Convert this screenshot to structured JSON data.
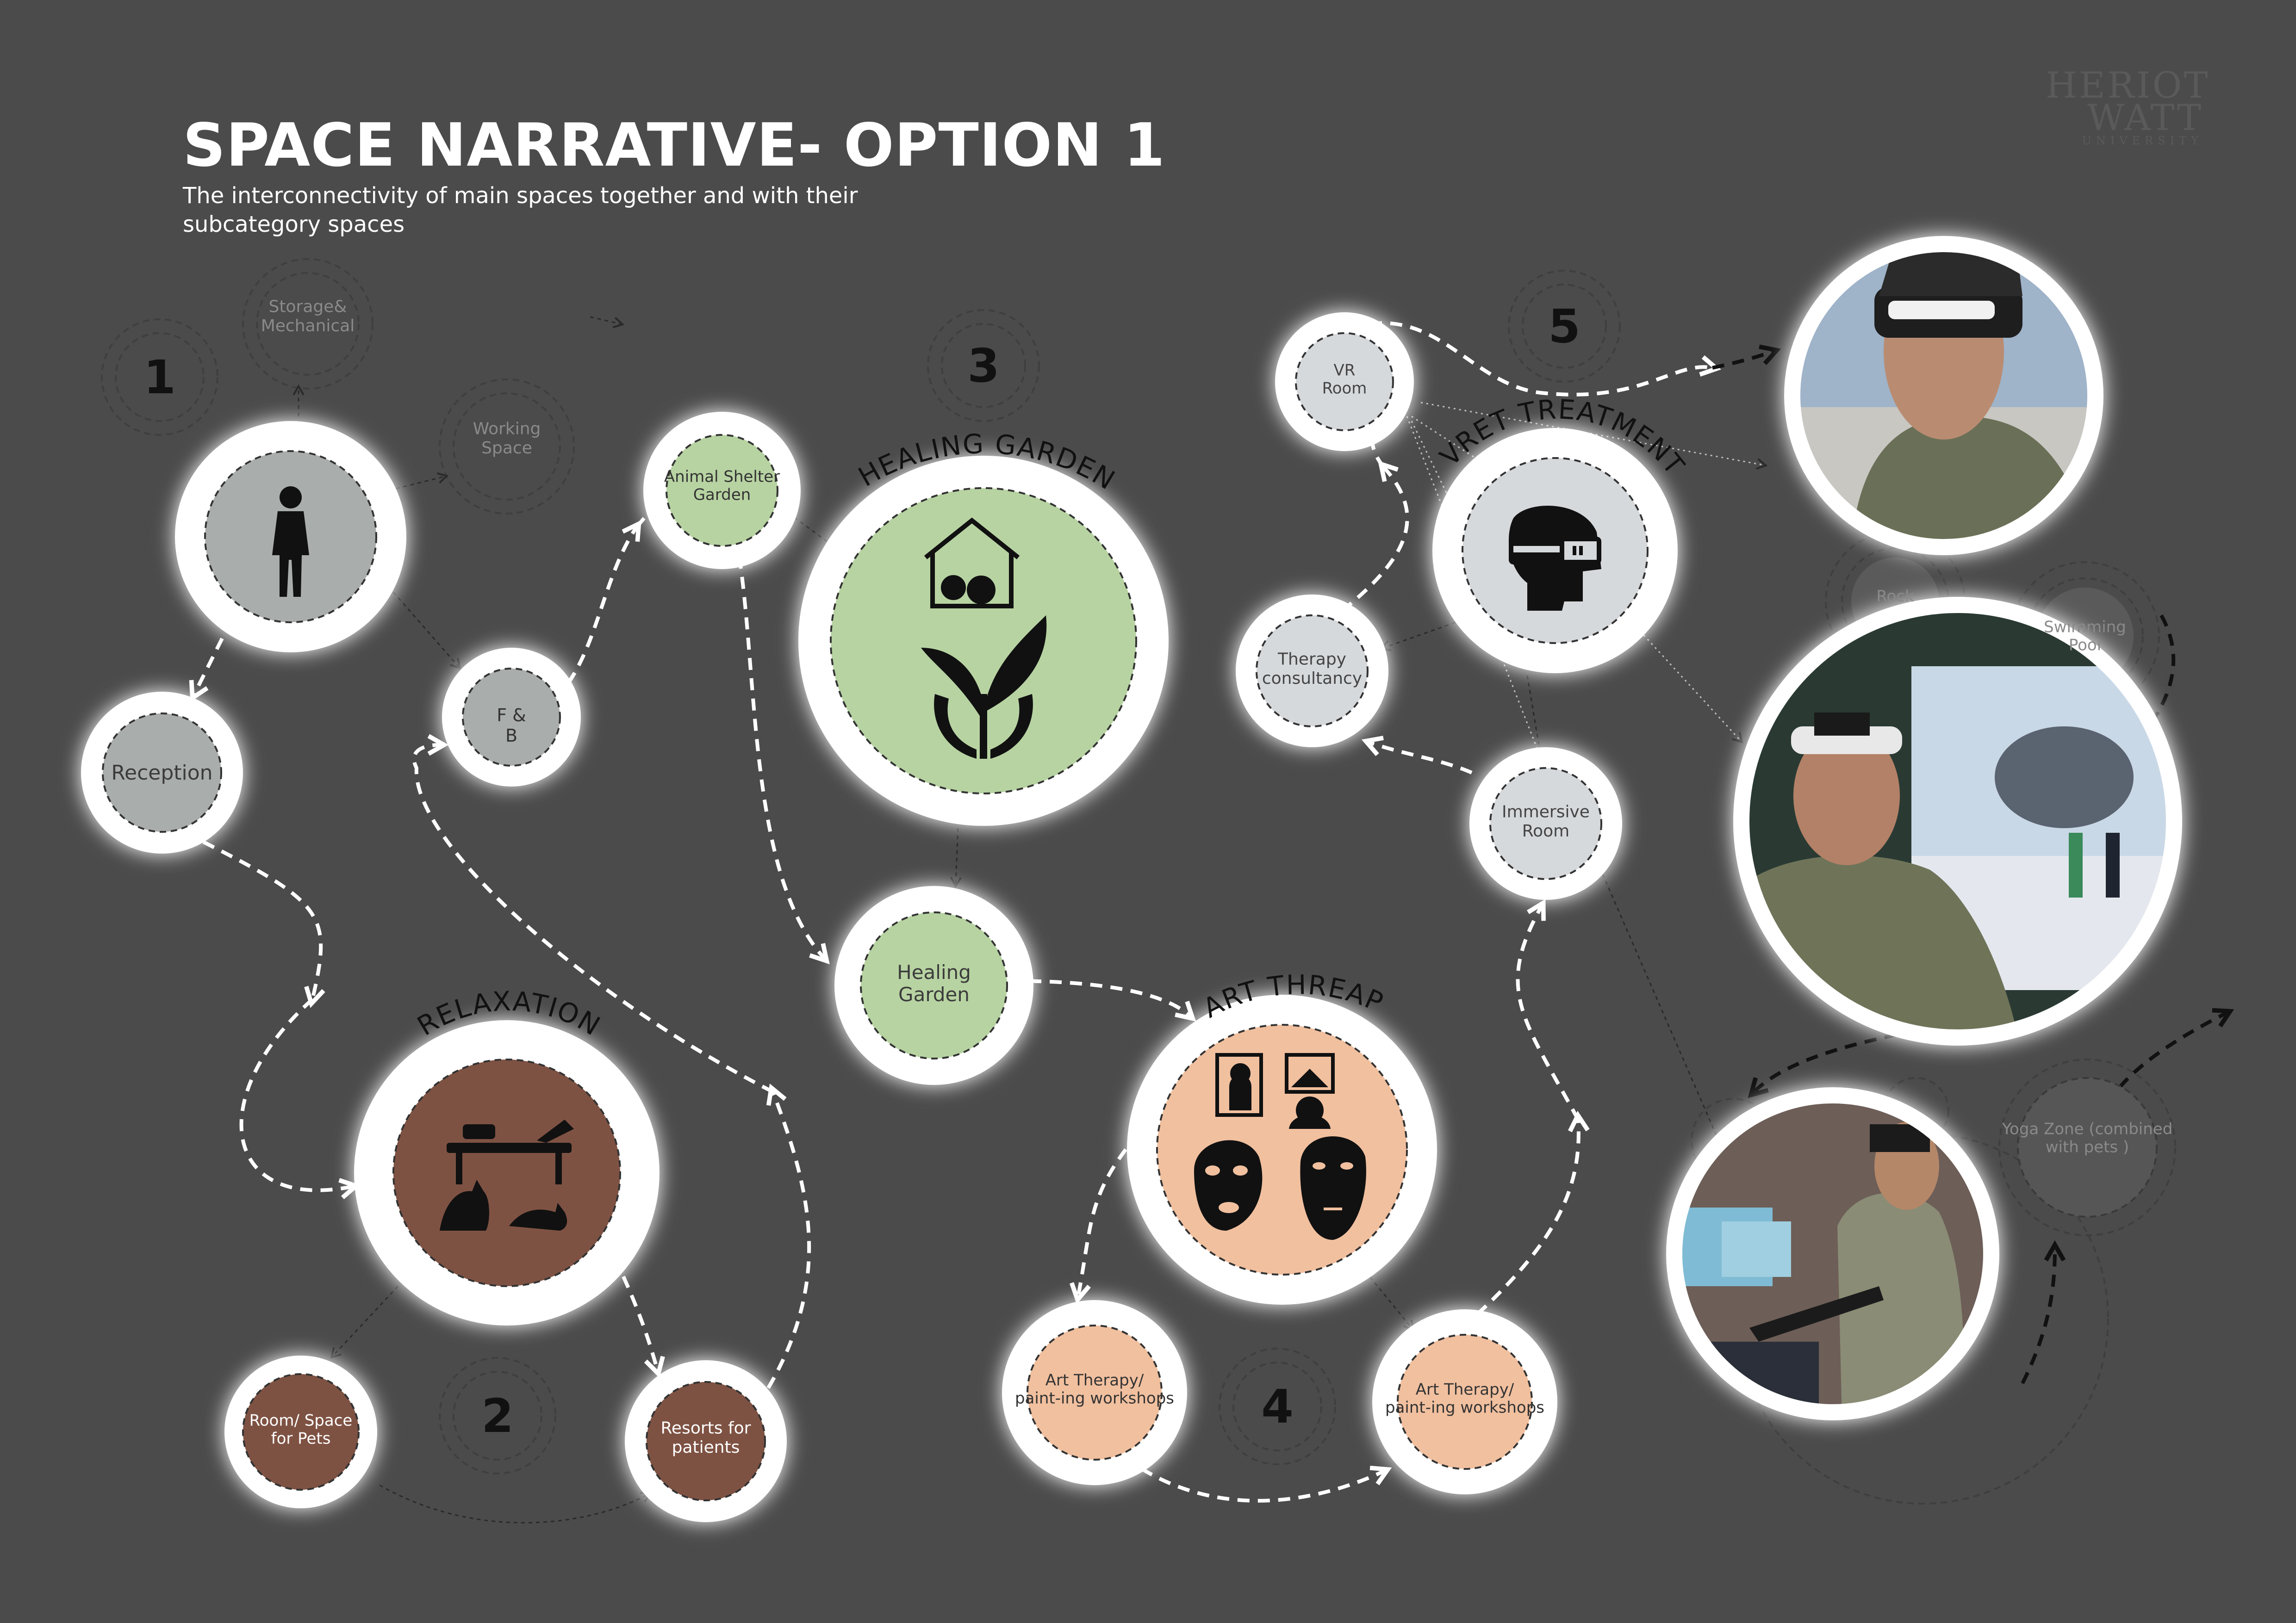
{
  "header": {
    "title": "SPACE NARRATIVE- OPTION 1",
    "subtitle": "The interconnectivity of main spaces together and with their subcategory spaces"
  },
  "logo": {
    "line1": "HERIOT",
    "line2": "WATT",
    "line3": "UNIVERSITY"
  },
  "colors": {
    "background": "#4b4b4b",
    "grey_fill": "#a9adab",
    "green_fill": "#b7d3a2",
    "brown_fill": "#7e5243",
    "peach_fill": "#f1c09f",
    "light_fill": "#d6d9dc",
    "ring": "#ffffff",
    "faded_ring": "#6a6a6a"
  },
  "numbers": {
    "n1": "1",
    "n2": "2",
    "n3": "3",
    "n4": "4",
    "n5": "5"
  },
  "arc_labels": {
    "healing_garden": "HEALING GARDEN",
    "relaxation": "RELAXATION",
    "art_therapy": "ART THREAPY",
    "vret": "VRET TREATMENT"
  },
  "nodes": {
    "storage": "Storage& Mechanical",
    "working": "Working Space",
    "reception": "Reception",
    "fb": "F & B",
    "animal_shelter": "Animal Shelter Garden",
    "healing_garden": "Healing Garden",
    "room_pets": "Room/ Space for Pets",
    "resorts": "Resorts for patients",
    "art1": "Art Therapy/ paint-ing workshops",
    "art2": "Art Therapy/ paint-ing workshops",
    "vr_room": "VR Room",
    "therapy_consult": "Therapy consultancy",
    "immersive": "Immersive Room",
    "rock": "Rock",
    "swimming": "Swimming Pool",
    "yoga": "Yoga Zone (combined with pets )"
  },
  "icons": {
    "person": "standing-person-icon",
    "house_pets": "house-with-pets-icon",
    "plant_hands": "plant-in-hands-icon",
    "lounge": "lounge-chair-icon",
    "cats": "cats-icon",
    "portrait": "portrait-frame-icon",
    "picture": "picture-frame-icon",
    "masks": "theatre-masks-icon",
    "vr_head": "vr-headset-head-icon"
  },
  "photos": {
    "p1": "soldier-wearing-vr-goggles-photo",
    "p2": "soldier-with-vr-headset-in-front-of-screen-photo",
    "p3": "soldier-with-rifle-in-vr-simulator-photo"
  }
}
